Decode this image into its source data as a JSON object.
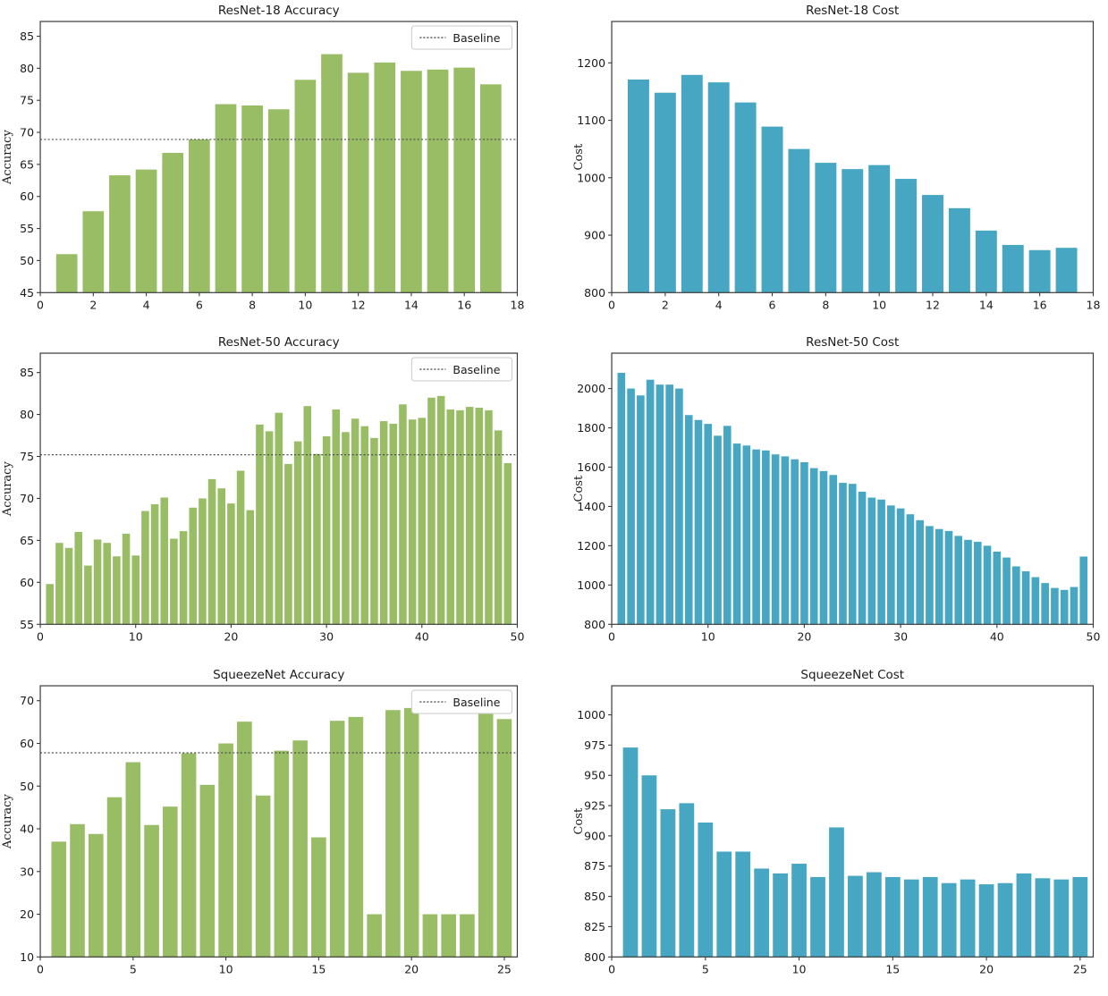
{
  "figure": {
    "background": "#ffffff",
    "axis_color": "#3a3a3a",
    "text_color": "#1b1b1b",
    "baseline_color": "#4d4d4d",
    "legend_border_color": "#c9c9c9",
    "accuracy_bar_color": "#99BD65",
    "cost_bar_color": "#47A7C2"
  },
  "chart_data": [
    {
      "type": "bar",
      "title": "ResNet-18 Accuracy",
      "ylabel": "Accuracy",
      "legend_label": "Baseline",
      "legend_position": "upper right",
      "baseline": 68.9,
      "bar_color": "#99BD65",
      "grid": false,
      "xlim": [
        0,
        18
      ],
      "ylim": [
        45,
        87.3
      ],
      "xticks": [
        0,
        2,
        4,
        6,
        8,
        10,
        12,
        14,
        16,
        18
      ],
      "yticks": [
        45,
        50,
        55,
        60,
        65,
        70,
        75,
        80,
        85
      ],
      "x": [
        1,
        2,
        3,
        4,
        5,
        6,
        7,
        8,
        9,
        10,
        11,
        12,
        13,
        14,
        15,
        16,
        17
      ],
      "values": [
        51.0,
        57.7,
        63.3,
        64.2,
        66.8,
        68.9,
        74.4,
        74.2,
        73.6,
        78.2,
        82.2,
        79.3,
        80.9,
        79.6,
        79.8,
        80.1,
        77.5
      ]
    },
    {
      "type": "bar",
      "title": "ResNet-18 Cost",
      "ylabel": "Cost",
      "legend_label": null,
      "baseline": null,
      "bar_color": "#47A7C2",
      "grid": false,
      "xlim": [
        0,
        18
      ],
      "ylim": [
        800,
        1272
      ],
      "xticks": [
        0,
        2,
        4,
        6,
        8,
        10,
        12,
        14,
        16,
        18
      ],
      "yticks": [
        800,
        900,
        1000,
        1100,
        1200
      ],
      "x": [
        1,
        2,
        3,
        4,
        5,
        6,
        7,
        8,
        9,
        10,
        11,
        12,
        13,
        14,
        15,
        16,
        17
      ],
      "values": [
        1171,
        1148,
        1179,
        1166,
        1131,
        1089,
        1050,
        1026,
        1015,
        1022,
        998,
        970,
        947,
        908,
        883,
        874,
        878
      ]
    },
    {
      "type": "bar",
      "title": "ResNet-50 Accuracy",
      "ylabel": "Accuracy",
      "legend_label": "Baseline",
      "legend_position": "upper right",
      "baseline": 75.2,
      "bar_color": "#99BD65",
      "grid": false,
      "xlim": [
        0,
        50
      ],
      "ylim": [
        55,
        87.3
      ],
      "xticks": [
        0,
        10,
        20,
        30,
        40,
        50
      ],
      "yticks": [
        55,
        60,
        65,
        70,
        75,
        80,
        85
      ],
      "x": [
        1,
        2,
        3,
        4,
        5,
        6,
        7,
        8,
        9,
        10,
        11,
        12,
        13,
        14,
        15,
        16,
        17,
        18,
        19,
        20,
        21,
        22,
        23,
        24,
        25,
        26,
        27,
        28,
        29,
        30,
        31,
        32,
        33,
        34,
        35,
        36,
        37,
        38,
        39,
        40,
        41,
        42,
        43,
        44,
        45,
        46,
        47,
        48,
        49
      ],
      "values": [
        59.8,
        64.7,
        64.1,
        66.0,
        62.0,
        65.1,
        64.7,
        63.1,
        65.8,
        63.2,
        68.5,
        69.3,
        70.1,
        65.2,
        66.1,
        68.9,
        70.0,
        72.3,
        71.2,
        69.4,
        73.3,
        68.6,
        78.8,
        78.0,
        80.2,
        74.1,
        76.8,
        81.0,
        75.3,
        77.4,
        80.6,
        77.9,
        79.5,
        78.6,
        77.2,
        79.2,
        78.9,
        81.2,
        79.4,
        79.6,
        82.0,
        82.2,
        80.6,
        80.5,
        80.9,
        80.8,
        80.5,
        78.1,
        74.2
      ]
    },
    {
      "type": "bar",
      "title": "ResNet-50 Cost",
      "ylabel": "Cost",
      "legend_label": null,
      "baseline": null,
      "bar_color": "#47A7C2",
      "grid": false,
      "xlim": [
        0,
        50
      ],
      "ylim": [
        800,
        2180
      ],
      "xticks": [
        0,
        10,
        20,
        30,
        40,
        50
      ],
      "yticks": [
        800,
        1000,
        1200,
        1400,
        1600,
        1800,
        2000
      ],
      "x": [
        1,
        2,
        3,
        4,
        5,
        6,
        7,
        8,
        9,
        10,
        11,
        12,
        13,
        14,
        15,
        16,
        17,
        18,
        19,
        20,
        21,
        22,
        23,
        24,
        25,
        26,
        27,
        28,
        29,
        30,
        31,
        32,
        33,
        34,
        35,
        36,
        37,
        38,
        39,
        40,
        41,
        42,
        43,
        44,
        45,
        46,
        47,
        48,
        49
      ],
      "values": [
        2080,
        2000,
        1965,
        2045,
        2020,
        2020,
        2000,
        1865,
        1840,
        1820,
        1760,
        1810,
        1720,
        1710,
        1690,
        1685,
        1665,
        1655,
        1640,
        1625,
        1595,
        1580,
        1560,
        1520,
        1515,
        1475,
        1445,
        1435,
        1405,
        1390,
        1360,
        1330,
        1300,
        1285,
        1275,
        1250,
        1230,
        1220,
        1200,
        1170,
        1140,
        1095,
        1070,
        1040,
        1010,
        985,
        975,
        990,
        1145
      ]
    },
    {
      "type": "bar",
      "title": "SqueezeNet Accuracy",
      "ylabel": "Accuracy",
      "legend_label": "Baseline",
      "legend_position": "upper right",
      "baseline": 57.8,
      "bar_color": "#99BD65",
      "grid": false,
      "xlim": [
        0,
        25.7
      ],
      "ylim": [
        10,
        73.5
      ],
      "xticks": [
        0,
        5,
        10,
        15,
        20,
        25
      ],
      "yticks": [
        10,
        20,
        30,
        40,
        50,
        60,
        70
      ],
      "x": [
        1,
        2,
        3,
        4,
        5,
        6,
        7,
        8,
        9,
        10,
        11,
        12,
        13,
        14,
        15,
        16,
        17,
        18,
        19,
        20,
        21,
        22,
        23,
        24,
        25
      ],
      "values": [
        37.0,
        41.1,
        38.8,
        47.4,
        55.6,
        40.9,
        45.2,
        57.7,
        50.3,
        60.0,
        65.1,
        47.8,
        58.3,
        60.7,
        38.0,
        65.3,
        66.2,
        20.0,
        67.8,
        68.3,
        20.0,
        20.0,
        20.0,
        66.9,
        65.7
      ]
    },
    {
      "type": "bar",
      "title": "SqueezeNet Cost",
      "ylabel": "Cost",
      "legend_label": null,
      "baseline": null,
      "bar_color": "#47A7C2",
      "grid": false,
      "xlim": [
        0,
        25.7
      ],
      "ylim": [
        800,
        1024
      ],
      "xticks": [
        0,
        5,
        10,
        15,
        20,
        25
      ],
      "yticks": [
        800,
        825,
        850,
        875,
        900,
        925,
        950,
        975,
        1000
      ],
      "x": [
        1,
        2,
        3,
        4,
        5,
        6,
        7,
        8,
        9,
        10,
        11,
        12,
        13,
        14,
        15,
        16,
        17,
        18,
        19,
        20,
        21,
        22,
        23,
        24,
        25
      ],
      "values": [
        973,
        950,
        922,
        927,
        911,
        887,
        887,
        873,
        869,
        877,
        866,
        907,
        867,
        870,
        866,
        864,
        866,
        861,
        864,
        860,
        861,
        869,
        865,
        864,
        866
      ]
    }
  ]
}
